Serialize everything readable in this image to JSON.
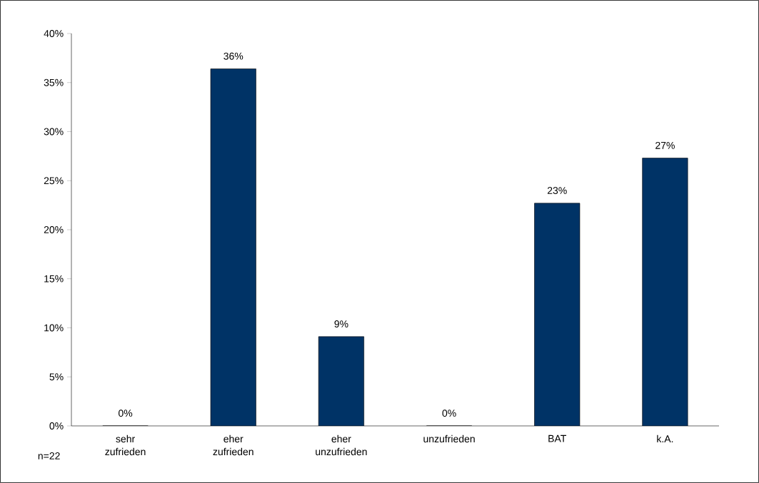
{
  "chart_data": {
    "type": "bar",
    "categories": [
      "sehr zufrieden",
      "eher zufrieden",
      "eher unzufrieden",
      "unzufrieden",
      "BAT",
      "k.A."
    ],
    "values": [
      0,
      36.4,
      9.1,
      0,
      22.7,
      27.3
    ],
    "value_labels": [
      "0%",
      "36%",
      "9%",
      "0%",
      "23%",
      "27%"
    ],
    "color": "#003366",
    "ylim": [
      0,
      40
    ],
    "yticks": [
      {
        "value": 0,
        "label": "0%"
      },
      {
        "value": 5,
        "label": "5%"
      },
      {
        "value": 10,
        "label": "10%"
      },
      {
        "value": 15,
        "label": "15%"
      },
      {
        "value": 20,
        "label": "20%"
      },
      {
        "value": 25,
        "label": "25%"
      },
      {
        "value": 30,
        "label": "30%"
      },
      {
        "value": 35,
        "label": "35%"
      },
      {
        "value": 40,
        "label": "40%"
      }
    ],
    "grid": false,
    "annotations": [
      "n=22"
    ]
  }
}
